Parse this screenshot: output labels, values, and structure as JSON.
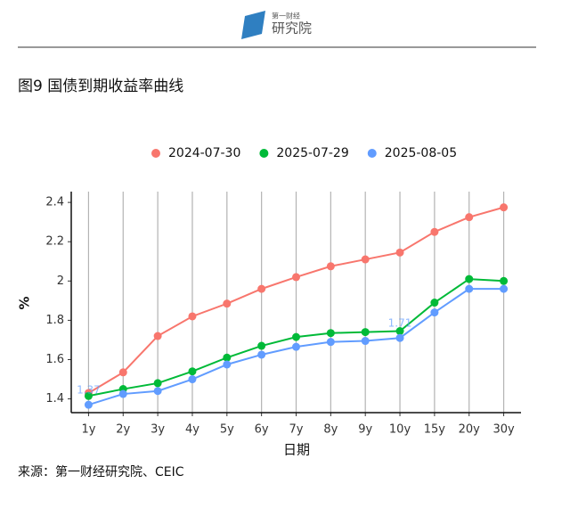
{
  "header": {
    "logo": "第一财经",
    "logo_sub": "研究院"
  },
  "chart_data": {
    "type": "line",
    "title": "图9 国债到期收益率曲线",
    "x_label": "日期",
    "y_label": "%",
    "categories": [
      "1y",
      "2y",
      "3y",
      "4y",
      "5y",
      "6y",
      "7y",
      "8y",
      "9y",
      "10y",
      "15y",
      "20y",
      "30y"
    ],
    "series": [
      {
        "name": "2024-07-30",
        "color": "#f8766d",
        "values": [
          1.43,
          1.535,
          1.72,
          1.82,
          1.885,
          1.96,
          2.02,
          2.075,
          2.11,
          2.145,
          2.25,
          2.325,
          2.375
        ]
      },
      {
        "name": "2025-07-29",
        "color": "#00ba38",
        "values": [
          1.415,
          1.45,
          1.48,
          1.54,
          1.61,
          1.67,
          1.715,
          1.735,
          1.74,
          1.745,
          1.89,
          2.01,
          2.0
        ]
      },
      {
        "name": "2025-08-05",
        "color": "#619cff",
        "values": [
          1.37,
          1.425,
          1.44,
          1.5,
          1.575,
          1.625,
          1.665,
          1.69,
          1.695,
          1.71,
          1.84,
          1.96,
          1.96
        ],
        "value_labels": [
          "1.37",
          null,
          null,
          null,
          null,
          null,
          null,
          null,
          null,
          "1.71",
          null,
          null,
          null
        ]
      }
    ],
    "ylim": [
      1.33,
      2.455
    ],
    "yticks": [
      1.4,
      1.6,
      1.8,
      2.0,
      2.2,
      2.4
    ],
    "grid": "vertical",
    "legend": "top"
  },
  "source": "来源：第一财经研究院、CEIC"
}
